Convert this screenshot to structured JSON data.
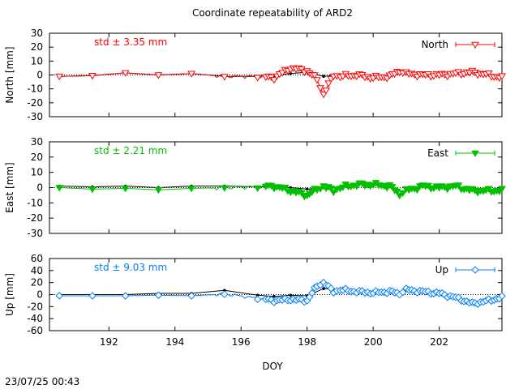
{
  "chart_data": {
    "title": "Coordinate repeatability of ARD2",
    "xlabel": "DOY",
    "xlim": [
      190.2,
      203.9
    ],
    "xticks": [
      192,
      194,
      196,
      198,
      200,
      202
    ],
    "x_nodes": [
      190.5,
      191.5,
      192.5,
      193.5,
      194.5,
      195.5,
      196.5,
      197.0,
      197.5,
      198.0,
      198.3,
      198.5,
      198.8,
      199.0,
      199.5,
      200.0,
      200.5,
      200.8,
      201.0,
      201.5,
      202.0,
      202.5,
      203.0,
      203.5,
      203.9
    ],
    "timestamp": "23/07/25 00:43",
    "panels": [
      {
        "name": "North",
        "type": "scatter",
        "ylabel": "North [mm]",
        "ylim": [
          -30,
          30
        ],
        "yticks": [
          -30,
          -20,
          -10,
          0,
          10,
          20,
          30
        ],
        "color": "#ff0000",
        "marker": "triangle-down-open",
        "std_label": "std ± 3.35 mm",
        "legend": "North",
        "daily_x": [
          190.5,
          191.5,
          192.5,
          193.5,
          194.5,
          195.5,
          196.5,
          197.0,
          197.5,
          198.0,
          198.5,
          199.0
        ],
        "daily_y": [
          -1,
          -0.5,
          1.5,
          0,
          1,
          -1,
          -1,
          -0.5,
          1,
          2,
          -1,
          0
        ],
        "points": [
          -1,
          -0.5,
          1.5,
          0,
          1,
          -1,
          -1,
          -2,
          5,
          3,
          -3,
          -14,
          0,
          -1,
          0,
          -2,
          -1,
          3,
          1,
          0,
          0,
          1,
          2,
          0,
          -2
        ]
      },
      {
        "name": "East",
        "type": "scatter",
        "ylabel": "East [mm]",
        "ylim": [
          -30,
          30
        ],
        "yticks": [
          -30,
          -20,
          -10,
          0,
          10,
          20,
          30
        ],
        "color": "#00c000",
        "marker": "triangle-down-filled",
        "std_label": "std ± 2.21 mm",
        "legend": "East",
        "daily_x": [
          190.5,
          191.5,
          192.5,
          193.5,
          194.5,
          195.5,
          196.5,
          197.0,
          197.5,
          198.0,
          198.5,
          199.0
        ],
        "daily_y": [
          1,
          0.5,
          1,
          0,
          1,
          1,
          0.5,
          0.5,
          0,
          -1,
          0,
          0
        ],
        "points": [
          0,
          -1,
          -0.5,
          -1.5,
          -0.5,
          0,
          0.5,
          1,
          -2,
          -5,
          -1,
          1,
          -2,
          0,
          2,
          2,
          1,
          -4,
          -2,
          1,
          0,
          1,
          -2,
          -2,
          -2
        ]
      },
      {
        "name": "Up",
        "type": "scatter",
        "ylabel": "Up [mm]",
        "ylim": [
          -60,
          60
        ],
        "yticks": [
          -60,
          -40,
          -20,
          0,
          20,
          40,
          60
        ],
        "color": "#0080ff",
        "marker": "diamond-open",
        "std_label": "std ± 9.03 mm",
        "legend": "Up",
        "daily_x": [
          190.5,
          191.5,
          192.5,
          193.5,
          194.5,
          195.5,
          196.5,
          197.0,
          197.5,
          198.0,
          198.5,
          199.0
        ],
        "daily_y": [
          0,
          0,
          0,
          2,
          2,
          7,
          -1,
          -3,
          -1,
          -2,
          10,
          8
        ],
        "points": [
          -2,
          -2,
          -2,
          -1,
          -2,
          1,
          -6,
          -10,
          -8,
          -10,
          15,
          20,
          5,
          8,
          5,
          3,
          5,
          2,
          8,
          5,
          2,
          -5,
          -15,
          -10,
          -5
        ]
      }
    ]
  }
}
